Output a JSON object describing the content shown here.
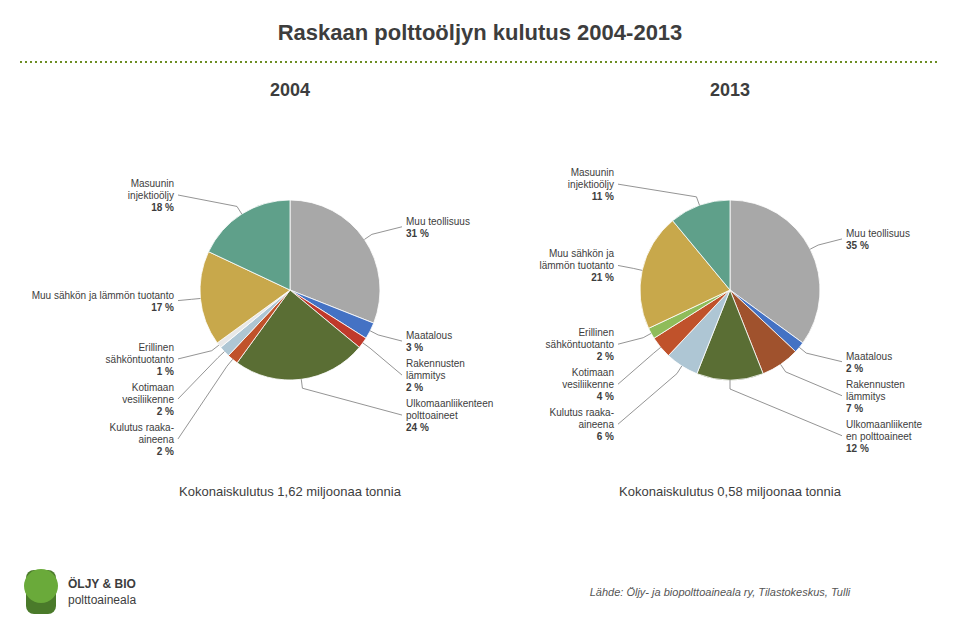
{
  "title": "Raskaan polttoöljyn kulutus 2004-2013",
  "source": "Lähde: Öljy- ja biopolttoaineala ry, Tilastokeskus, Tulli",
  "logo_text": [
    "ÖLJY & BIO",
    "polttoaineala"
  ],
  "chart_data": [
    {
      "type": "pie",
      "title": "2004",
      "subtitle": "Kokonaiskulutus 1,62 miljoonaa tonnia",
      "categories": [
        "Muu teollisuus",
        "Maatalous",
        "Rakennusten\nlämmitys",
        "Ulkomaanliikenteen\npolttoaineet",
        "Kulutus raaka-\naineena",
        "Kotimaan\nvesiliikenne",
        "Erillinen\nsähköntuotanto",
        "Muu sähkön ja lämmön tuotanto",
        "Masuunin\ninjektioöljy"
      ],
      "values": [
        31,
        3,
        2,
        24,
        2,
        2,
        1,
        17,
        18
      ],
      "value_labels": [
        "31 %",
        "3 %",
        "2 %",
        "24 %",
        "2 %",
        "2 %",
        "1 %",
        "17 %",
        "18 %"
      ],
      "colors": [
        "#a8a8a8",
        "#4472c4",
        "#c0392b",
        "#5a6e34",
        "#c0522b",
        "#aec6d4",
        "#e8e8e8",
        "#c8a84b",
        "#5fa08a"
      ],
      "data_labels": true
    },
    {
      "type": "pie",
      "title": "2013",
      "subtitle": "Kokonaiskulutus 0,58 miljoonaa tonnia",
      "categories": [
        "Muu teollisuus",
        "Maatalous",
        "Rakennusten\nlämmitys",
        "Ulkomaanliikente\nen polttoaineet",
        "Kulutus raaka-\naineena",
        "Kotimaan\nvesiliikenne",
        "Erillinen\nsähköntuotanto",
        "Muu sähkön ja\nlämmön tuotanto",
        "Masuunin\ninjektioöljy"
      ],
      "values": [
        35,
        2,
        7,
        12,
        6,
        4,
        2,
        21,
        11
      ],
      "value_labels": [
        "35 %",
        "2 %",
        "7 %",
        "12 %",
        "6 %",
        "4 %",
        "2 %",
        "21 %",
        "11 %"
      ],
      "colors": [
        "#a8a8a8",
        "#4472c4",
        "#a0522d",
        "#5a6e34",
        "#aec6d4",
        "#c0522b",
        "#8fbc5a",
        "#c8a84b",
        "#5fa08a"
      ],
      "data_labels": true
    }
  ]
}
